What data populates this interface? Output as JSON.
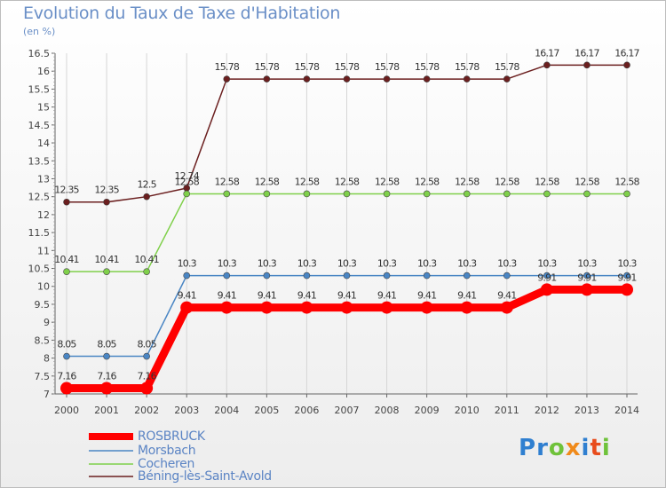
{
  "title": "Evolution du Taux de Taxe d'Habitation",
  "unit": "(en %)",
  "brand": [
    "P",
    "r",
    "o",
    "x",
    "i",
    "t",
    "i"
  ],
  "chart_data": {
    "type": "line",
    "title": "Evolution du Taux de Taxe d'Habitation",
    "ylabel": "(en %)",
    "categories": [
      "2000",
      "2001",
      "2002",
      "2003",
      "2004",
      "2005",
      "2006",
      "2007",
      "2008",
      "2009",
      "2010",
      "2011",
      "2012",
      "2013",
      "2014"
    ],
    "ylim": [
      7,
      16.5
    ],
    "yticks": [
      "7",
      "7.5",
      "8",
      "8.5",
      "9",
      "9.5",
      "10",
      "10.5",
      "11",
      "11.5",
      "12",
      "12.5",
      "13",
      "13.5",
      "14",
      "14.5",
      "15",
      "15.5",
      "16",
      "16.5"
    ],
    "series": [
      {
        "name": "ROSBRUCK",
        "color": "#ff0000",
        "values": [
          7.16,
          7.16,
          7.16,
          9.41,
          9.41,
          9.41,
          9.41,
          9.41,
          9.41,
          9.41,
          9.41,
          9.41,
          9.91,
          9.91,
          9.91
        ],
        "labels": [
          "7.16",
          "7.16",
          "7.16",
          "9.41",
          "9.41",
          "9.41",
          "9.41",
          "9.41",
          "9.41",
          "9.41",
          "9.41",
          "9.41",
          "9.91",
          "9.91",
          "9.91"
        ]
      },
      {
        "name": "Morsbach",
        "color": "#4a86c4",
        "values": [
          8.05,
          8.05,
          8.05,
          10.3,
          10.3,
          10.3,
          10.3,
          10.3,
          10.3,
          10.3,
          10.3,
          10.3,
          10.3,
          10.3,
          10.3
        ],
        "labels": [
          "8.05",
          "8.05",
          "8.05",
          "10.3",
          "10.3",
          "10.3",
          "10.3",
          "10.3",
          "10.3",
          "10.3",
          "10.3",
          "10.3",
          "10.3",
          "10.3",
          "10.3"
        ]
      },
      {
        "name": "Cocheren",
        "color": "#7fd04a",
        "values": [
          10.41,
          10.41,
          10.41,
          12.58,
          12.58,
          12.58,
          12.58,
          12.58,
          12.58,
          12.58,
          12.58,
          12.58,
          12.58,
          12.58,
          12.58
        ],
        "labels": [
          "10.41",
          "10.41",
          "10.41",
          "12.58",
          "12.58",
          "12.58",
          "12.58",
          "12.58",
          "12.58",
          "12.58",
          "12.58",
          "12.58",
          "12.58",
          "12.58",
          "12.58"
        ]
      },
      {
        "name": "Béning-lès-Saint-Avold",
        "color": "#6b1f1f",
        "values": [
          12.35,
          12.35,
          12.5,
          12.74,
          15.78,
          15.78,
          15.78,
          15.78,
          15.78,
          15.78,
          15.78,
          15.78,
          16.17,
          16.17,
          16.17
        ],
        "labels": [
          "12.35",
          "12.35",
          "12.5",
          "12.74",
          "15.78",
          "15.78",
          "15.78",
          "15.78",
          "15.78",
          "15.78",
          "15.78",
          "15.78",
          "16.17",
          "16.17",
          "16.17"
        ]
      }
    ]
  }
}
